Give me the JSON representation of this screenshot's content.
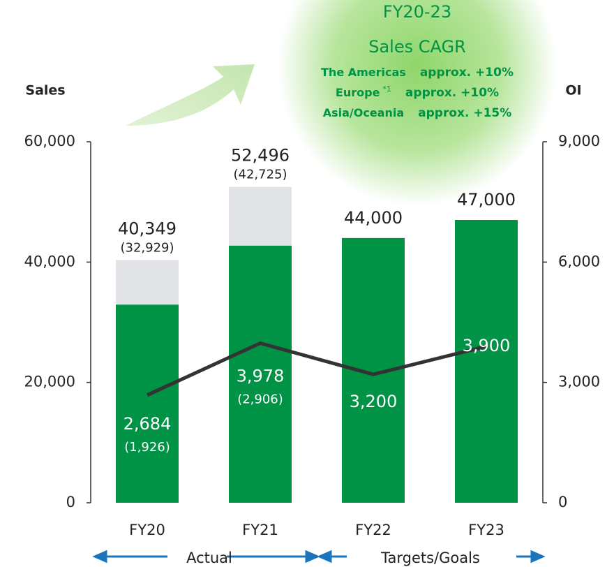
{
  "chart_data": {
    "type": "combo",
    "title": "FY20-23",
    "subtitle": "Sales CAGR",
    "annotation": [
      {
        "region": "The Americas",
        "growth": "approx. +10%"
      },
      {
        "region": "Europe",
        "footnote": "*1",
        "growth": "approx. +10%"
      },
      {
        "region": "Asia/Oceania",
        "growth": "approx. +15%"
      }
    ],
    "y_label": "Sales",
    "y2_label": "OI",
    "categories": [
      "FY20",
      "FY21",
      "FY22",
      "FY23"
    ],
    "periods": [
      "Actual",
      "Targets/Goals"
    ],
    "ylim": [
      0,
      60000
    ],
    "yticks": [
      {
        "value": 0,
        "label": "0"
      },
      {
        "value": 20000,
        "label": "20,000"
      },
      {
        "value": 40000,
        "label": "40,000"
      },
      {
        "value": 60000,
        "label": "60,000"
      }
    ],
    "y2lim": [
      0,
      9000
    ],
    "y2ticks": [
      {
        "value": 0,
        "label": "0"
      },
      {
        "value": 3000,
        "label": "3,000"
      },
      {
        "value": 6000,
        "label": "6,000"
      },
      {
        "value": 9000,
        "label": "9,000"
      }
    ],
    "series": [
      {
        "kind": "bar",
        "color": [
          "#e3e4e8",
          "#e3e4e8",
          "#009245",
          "#009245"
        ],
        "values": [
          40349,
          52496,
          44000,
          47000
        ],
        "value_labels": [
          "40,349",
          "52,496",
          "44,000",
          "47,000"
        ]
      },
      {
        "kind": "bar",
        "color": "#009245",
        "values": [
          32929,
          42725,
          null,
          null
        ],
        "value_labels": [
          "(32,929)",
          "(42,725)",
          null,
          null
        ]
      },
      {
        "kind": "line",
        "axis": "y2",
        "color": "#333333",
        "values": [
          2684,
          3978,
          3200,
          3900
        ],
        "value_labels": [
          "2,684",
          "3,978",
          "3,200",
          "3,900"
        ]
      },
      {
        "kind": "text",
        "axis": "y2",
        "values": [
          1926,
          2906,
          null,
          null
        ],
        "value_labels": [
          "(1,926)",
          "(2,906)",
          null,
          null
        ]
      }
    ]
  }
}
